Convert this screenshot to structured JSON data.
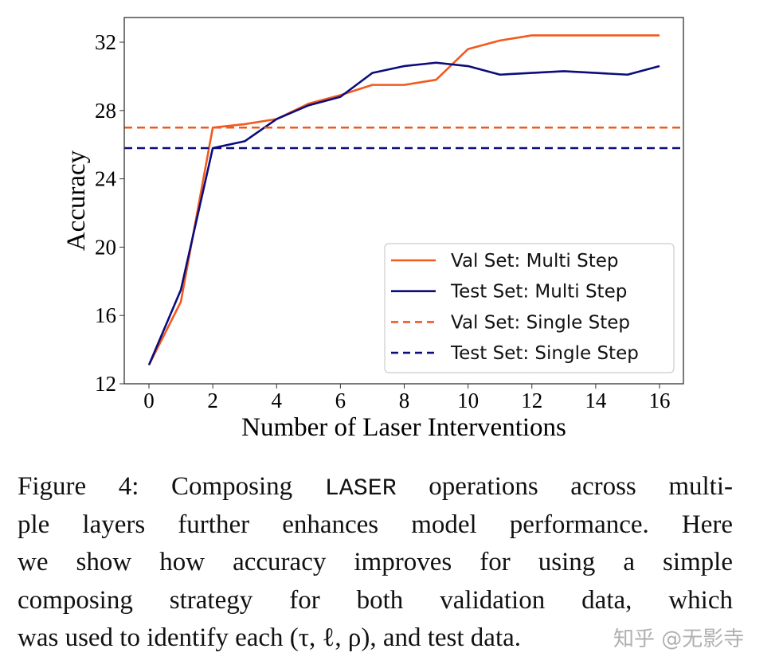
{
  "chart_data": {
    "type": "line",
    "xlabel": "Number of Laser Interventions",
    "ylabel": "Accuracy",
    "xlim": [
      -0.75,
      16.75
    ],
    "ylim": [
      12,
      33.3
    ],
    "xticks": [
      0,
      2,
      4,
      6,
      8,
      10,
      12,
      14,
      16
    ],
    "yticks": [
      12,
      16,
      20,
      24,
      28,
      32
    ],
    "grid": false,
    "legend_position": "lower-right",
    "x": [
      0,
      1,
      2,
      3,
      4,
      5,
      6,
      7,
      8,
      9,
      10,
      11,
      12,
      13,
      14,
      15,
      16
    ],
    "series": [
      {
        "name": "Val Set: Multi Step",
        "style": "solid",
        "color": "#f05a1e",
        "values": [
          13.1,
          16.8,
          27.0,
          27.2,
          27.5,
          28.4,
          28.9,
          29.5,
          29.5,
          29.8,
          31.6,
          32.1,
          32.4,
          32.4,
          32.4,
          32.4,
          32.4
        ]
      },
      {
        "name": "Test Set: Multi Step",
        "style": "solid",
        "color": "#0c0c7c",
        "values": [
          13.1,
          17.5,
          25.8,
          26.2,
          27.5,
          28.3,
          28.8,
          30.2,
          30.6,
          30.8,
          30.6,
          30.1,
          30.2,
          30.3,
          30.2,
          30.1,
          30.6
        ]
      },
      {
        "name": "Val Set: Single Step",
        "style": "dashed",
        "color": "#f05a1e",
        "constant": 27.0
      },
      {
        "name": "Test Set: Single Step",
        "style": "dashed",
        "color": "#0c0c7c",
        "constant": 25.8
      }
    ]
  },
  "caption": {
    "line1_prefix": "Figure 4: Composing ",
    "line1_code": "LASER",
    "line1_suffix": " operations across multi-",
    "line2": "ple layers further enhances model performance. Here",
    "line3": "we show how accuracy improves for using a simple",
    "line4": "composing strategy for both validation data, which",
    "line5": "was used to identify each (τ, ℓ, ρ), and test data."
  },
  "watermark": "知乎 @无影寺"
}
